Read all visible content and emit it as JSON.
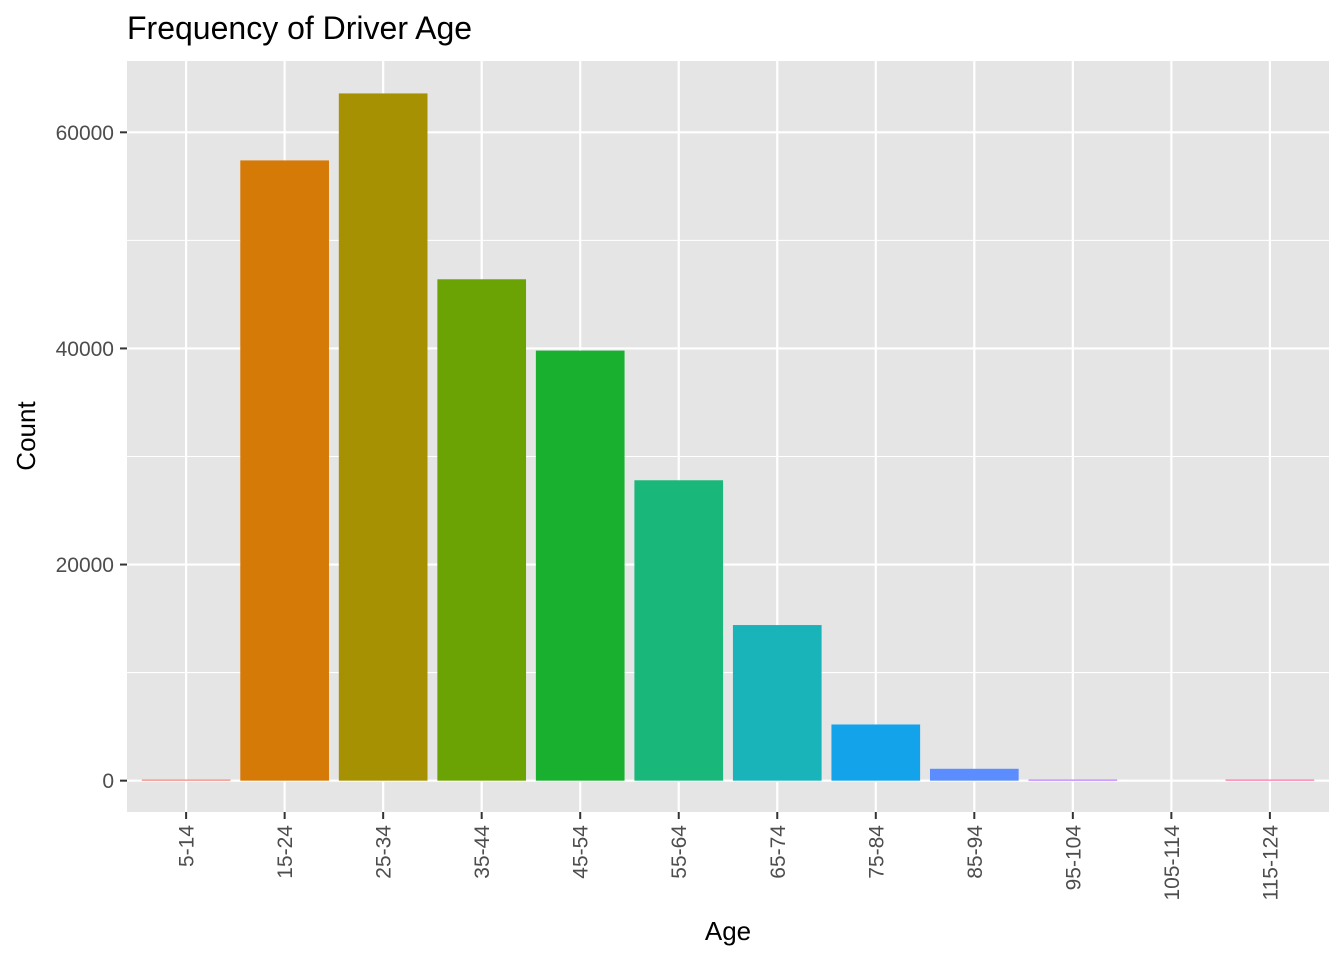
{
  "chart_data": {
    "type": "bar",
    "title": "Frequency of Driver Age",
    "xlabel": "Age",
    "ylabel": "Count",
    "categories": [
      "5-14",
      "15-24",
      "25-34",
      "35-44",
      "45-54",
      "55-64",
      "65-74",
      "75-84",
      "85-94",
      "95-104",
      "105-114",
      "115-124"
    ],
    "values": [
      100,
      57400,
      63600,
      46400,
      39800,
      27800,
      14400,
      5200,
      1100,
      100,
      0,
      100
    ],
    "colors": [
      "#F8766D",
      "#D67A07",
      "#A69103",
      "#6BA304",
      "#18B02E",
      "#19B87A",
      "#18B4BA",
      "#12A3EA",
      "#5C8DFE",
      "#B76FFF",
      "#EA69DD",
      "#FD64A2"
    ],
    "yticks": [
      0,
      20000,
      40000,
      60000
    ],
    "ytick_labels": [
      "0",
      "20000",
      "40000",
      "60000"
    ],
    "ylim": [
      -2900,
      66600
    ],
    "grid": true,
    "legend": "none",
    "background": "#e5e5e5",
    "grid_color": "#ffffff"
  }
}
